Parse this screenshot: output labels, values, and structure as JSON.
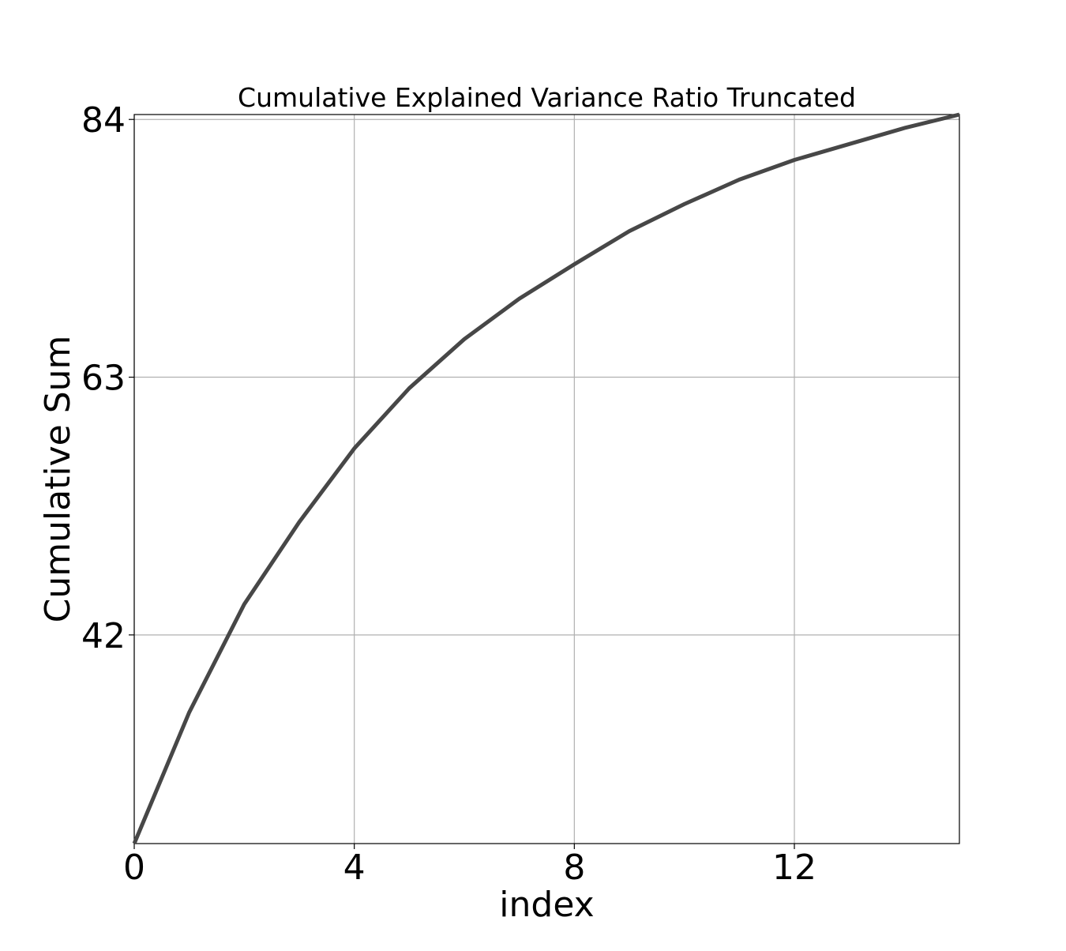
{
  "chart_data": {
    "type": "line",
    "title": "Cumulative Explained Variance Ratio Truncated",
    "xlabel": "index",
    "ylabel": "Cumulative Sum",
    "xlim": [
      0,
      15
    ],
    "ylim": [
      25,
      84.4
    ],
    "xticks": [
      0,
      4,
      8,
      12
    ],
    "yticks": [
      42,
      63,
      84
    ],
    "grid": true,
    "line_color": "#474747",
    "series": [
      {
        "x": [
          0,
          1,
          2,
          3,
          4,
          5,
          6,
          7,
          8,
          9,
          10,
          11,
          12,
          13,
          14,
          15
        ],
        "values": [
          25.0,
          35.7,
          44.5,
          51.2,
          57.2,
          62.1,
          66.1,
          69.4,
          72.2,
          74.9,
          77.1,
          79.1,
          80.7,
          82.0,
          83.3,
          84.4
        ]
      }
    ]
  }
}
